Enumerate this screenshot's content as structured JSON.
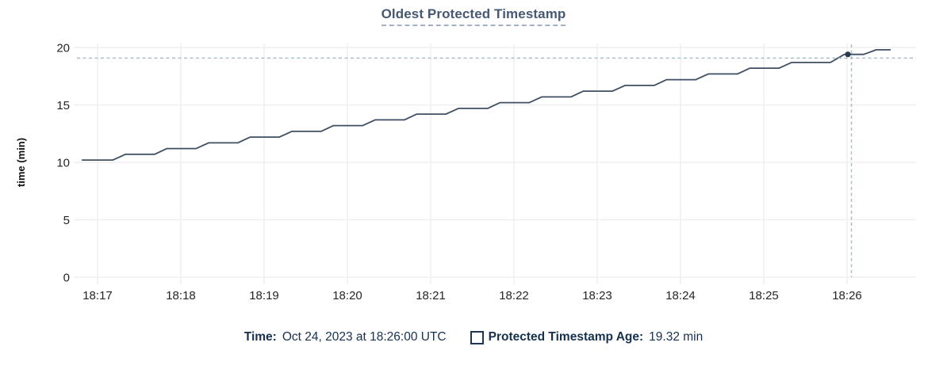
{
  "title": "Oldest Protected Timestamp",
  "legend": {
    "time_label": "Time:",
    "time_value": "Oct 24, 2023 at 18:26:00 UTC",
    "series_label": "Protected Timestamp Age:",
    "series_value": "19.32 min"
  },
  "colors": {
    "line": "#3f4e63",
    "dot": "#2c3a4e",
    "crosshair": "#a8bfc8",
    "grid": "#efefef",
    "title_text": "#475872",
    "legend_text": "#17304e",
    "axis_text": "#262626"
  },
  "chart_data": {
    "type": "line",
    "title": "Oldest Protected Timestamp",
    "xlabel": "",
    "ylabel": "time (min)",
    "ylim": [
      0,
      20
    ],
    "y_ticks": [
      0,
      5,
      10,
      15,
      20
    ],
    "x_ticks": [
      "18:17",
      "18:18",
      "18:19",
      "18:20",
      "18:21",
      "18:22",
      "18:23",
      "18:24",
      "18:25",
      "18:26"
    ],
    "x_visible_range": [
      "18:16:47",
      "18:26:50"
    ],
    "grid": true,
    "legend_position": "bottom",
    "line_style": "staircase",
    "series": [
      {
        "name": "Protected Timestamp Age",
        "unit": "min",
        "points": [
          [
            "18:16:49",
            10.2
          ],
          [
            "18:17:11",
            10.2
          ],
          [
            "18:17:20",
            10.7
          ],
          [
            "18:17:41",
            10.7
          ],
          [
            "18:17:50",
            11.2
          ],
          [
            "18:18:11",
            11.2
          ],
          [
            "18:18:20",
            11.7
          ],
          [
            "18:18:41",
            11.7
          ],
          [
            "18:18:50",
            12.2
          ],
          [
            "18:19:11",
            12.2
          ],
          [
            "18:19:20",
            12.7
          ],
          [
            "18:19:41",
            12.7
          ],
          [
            "18:19:50",
            13.2
          ],
          [
            "18:20:11",
            13.2
          ],
          [
            "18:20:20",
            13.7
          ],
          [
            "18:20:41",
            13.7
          ],
          [
            "18:20:50",
            14.2
          ],
          [
            "18:21:11",
            14.2
          ],
          [
            "18:21:20",
            14.7
          ],
          [
            "18:21:41",
            14.7
          ],
          [
            "18:21:50",
            15.2
          ],
          [
            "18:22:11",
            15.2
          ],
          [
            "18:22:20",
            15.7
          ],
          [
            "18:22:41",
            15.7
          ],
          [
            "18:22:50",
            16.2
          ],
          [
            "18:23:11",
            16.2
          ],
          [
            "18:23:20",
            16.7
          ],
          [
            "18:23:41",
            16.7
          ],
          [
            "18:23:50",
            17.2
          ],
          [
            "18:24:11",
            17.2
          ],
          [
            "18:24:20",
            17.7
          ],
          [
            "18:24:41",
            17.7
          ],
          [
            "18:24:50",
            18.2
          ],
          [
            "18:25:11",
            18.2
          ],
          [
            "18:25:20",
            18.7
          ],
          [
            "18:25:48",
            18.7
          ],
          [
            "18:25:58",
            19.4
          ],
          [
            "18:26:12",
            19.4
          ],
          [
            "18:26:21",
            19.8
          ],
          [
            "18:26:31",
            19.8
          ]
        ]
      }
    ],
    "hover": {
      "time": "18:26:00",
      "value_min": 19.32,
      "display_time": "Oct 24, 2023 at 18:26:00 UTC",
      "display_value": "19.32 min"
    }
  }
}
